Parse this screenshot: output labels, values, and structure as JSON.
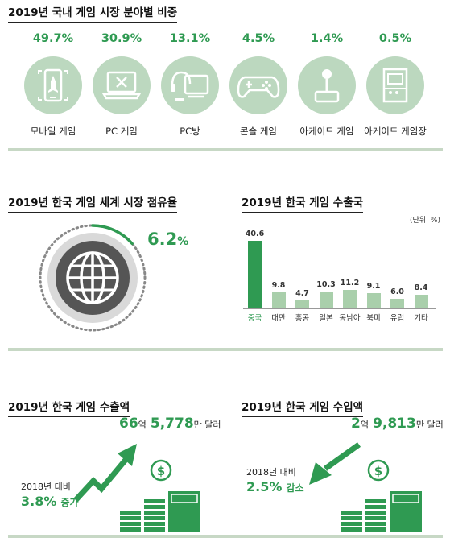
{
  "section1": {
    "title": "2019년 국내 게임 시장 분야별 비중",
    "items": [
      {
        "pct": "49.7%",
        "label": "모바일 게임",
        "icon": "smartphone-icon"
      },
      {
        "pct": "30.9%",
        "label": "PC 게임",
        "icon": "laptop-icon"
      },
      {
        "pct": "13.1%",
        "label": "PC방",
        "icon": "monitor-headset-icon"
      },
      {
        "pct": "4.5%",
        "label": "콘솔 게임",
        "icon": "gamepad-icon"
      },
      {
        "pct": "1.4%",
        "label": "아케이드 게임",
        "icon": "joystick-icon"
      },
      {
        "pct": "0.5%",
        "label": "아케이드 게임장",
        "icon": "arcade-machine-icon"
      }
    ]
  },
  "section2": {
    "title": "2019년 한국 게임 세계 시장 점유율",
    "value_num": "6.2",
    "value_unit": "%",
    "share": 0.062
  },
  "chart_data": {
    "type": "bar",
    "title": "2019년 한국 게임 수출국",
    "unit_note": "(단위: %)",
    "categories": [
      "중국",
      "대만",
      "홍콩",
      "일본",
      "동남아",
      "북미",
      "유럽",
      "기타"
    ],
    "values": [
      40.6,
      9.8,
      4.7,
      10.3,
      11.2,
      9.1,
      6.0,
      8.4
    ],
    "value_labels": [
      "40.6",
      "9.8",
      "4.7",
      "10.3",
      "11.2",
      "9.1",
      "6.0",
      "8.4"
    ],
    "highlight_index": 0,
    "ylim": [
      0,
      40.6
    ]
  },
  "export": {
    "title": "2019년 한국 게임 수출액",
    "amount_a": "66",
    "unit_a": "억",
    "amount_b": "5,778",
    "unit_b": "만 달러",
    "compare_label": "2018년 대비",
    "change_value": "3.8%",
    "change_word": "증가"
  },
  "import": {
    "title": "2019년 한국 게임 수입액",
    "amount_a": "2",
    "unit_a": "억",
    "amount_b": "9,813",
    "unit_b": "만 달러",
    "compare_label": "2018년 대비",
    "change_value": "2.5%",
    "change_word": "감소"
  },
  "colors": {
    "accent": "#2f9a52",
    "light": "#a9cfab",
    "icon_bg": "#bcd8bf",
    "divider": "#c7d8c5"
  }
}
